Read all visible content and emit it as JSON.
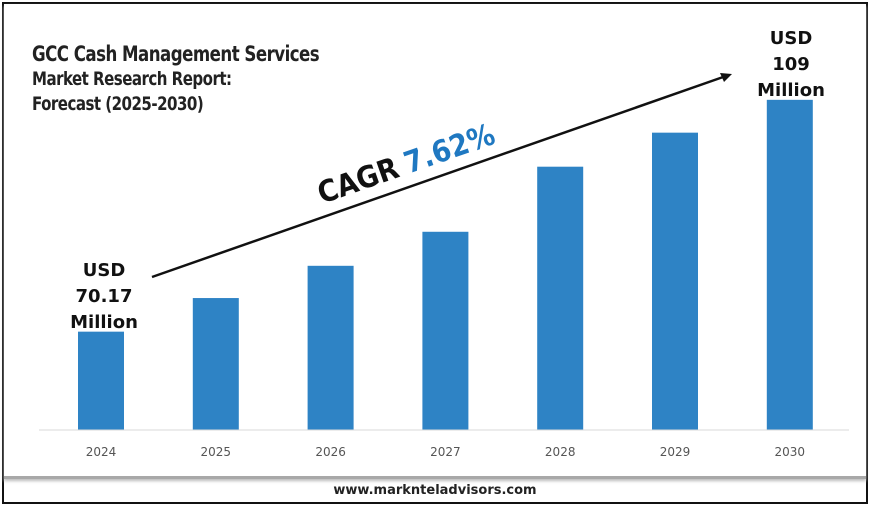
{
  "title": {
    "line1": "GCC Cash Management Services",
    "line2": "Market Research Report:",
    "line3": "Forecast (2025-2030)"
  },
  "cagr": {
    "label": "CAGR",
    "value": "7.62%"
  },
  "start_label": {
    "line1": "USD",
    "line2": "70.17",
    "line3": "Million"
  },
  "end_label": {
    "line1": "USD",
    "line2": "109",
    "line3": "Million"
  },
  "footer": "www.marknteladvisors.com",
  "colors": {
    "bar": "#2e83c5",
    "cagr_value": "#1f78c1",
    "text": "#222222",
    "axis_text": "#555555"
  },
  "chart_data": {
    "type": "bar",
    "categories": [
      "2024",
      "2025",
      "2026",
      "2027",
      "2028",
      "2029",
      "2030"
    ],
    "values": [
      70.17,
      75.8,
      81.2,
      86.9,
      97.8,
      103.5,
      109
    ],
    "unit": "USD Million",
    "ylim": [
      53.7,
      115
    ],
    "grid": false,
    "axis_visible": false
  }
}
